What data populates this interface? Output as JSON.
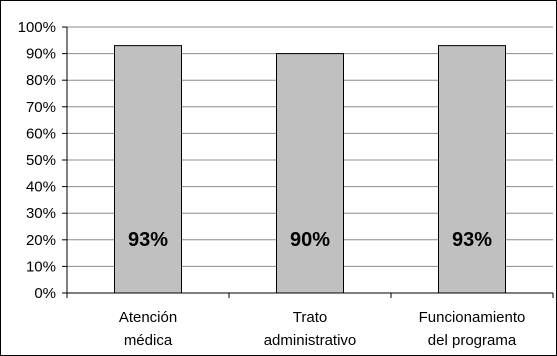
{
  "chart_data": {
    "type": "bar",
    "categories": [
      [
        "Atención",
        "médica"
      ],
      [
        "Trato",
        "administrativo"
      ],
      [
        "Funcionamiento",
        "del programa"
      ]
    ],
    "values": [
      93,
      90,
      93
    ],
    "data_labels": [
      "93%",
      "90%",
      "93%"
    ],
    "yticks": [
      "0%",
      "10%",
      "20%",
      "30%",
      "40%",
      "50%",
      "60%",
      "70%",
      "80%",
      "90%",
      "100%"
    ],
    "ylim": [
      0,
      100
    ],
    "grid": true,
    "bar_color": "#c0c0c0",
    "title": "",
    "xlabel": "",
    "ylabel": ""
  }
}
